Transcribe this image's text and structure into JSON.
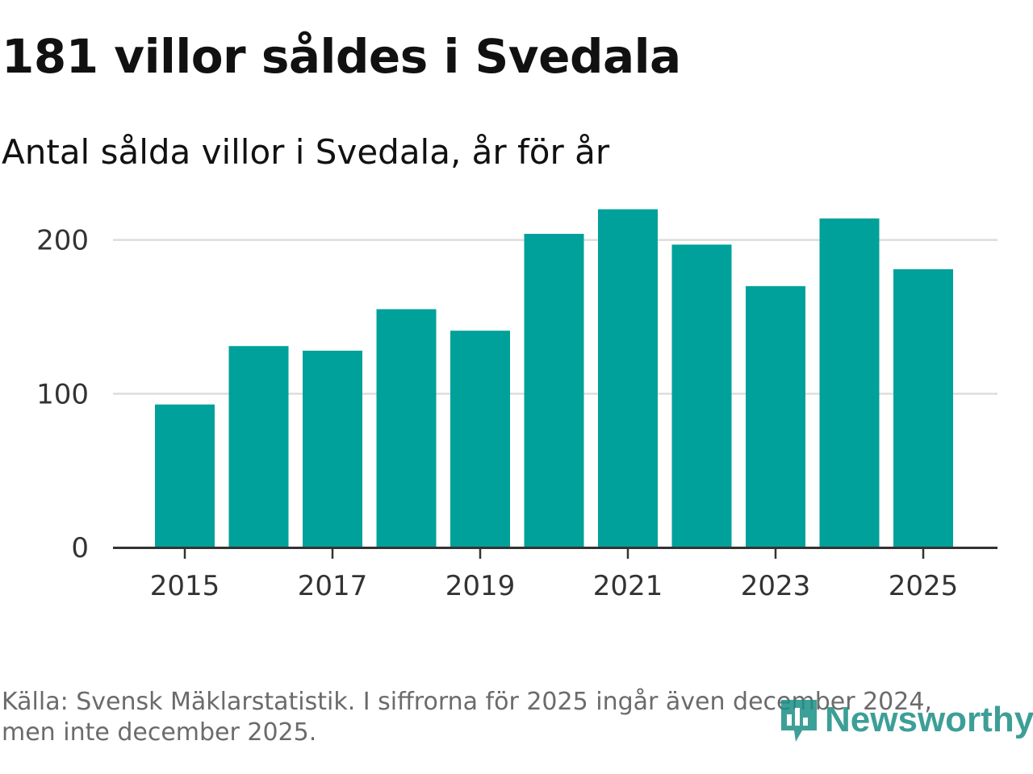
{
  "chart_data": {
    "type": "bar",
    "title": "181 villor såldes i Svedala",
    "subtitle": "Antal sålda villor i Svedala, år för år",
    "categories": [
      "2015",
      "2016",
      "2017",
      "2018",
      "2019",
      "2020",
      "2021",
      "2022",
      "2023",
      "2024",
      "2025"
    ],
    "values": [
      93,
      131,
      128,
      155,
      141,
      204,
      220,
      197,
      170,
      214,
      181
    ],
    "xticks": [
      "2015",
      "2017",
      "2019",
      "2021",
      "2023",
      "2025"
    ],
    "yticks": [
      0,
      100,
      200
    ],
    "ylim": [
      0,
      225
    ],
    "xlabel": "",
    "ylabel": "",
    "grid": true,
    "bar_color": "#00a19a",
    "grid_color": "#dddddd",
    "axis_color": "#333333"
  },
  "footer": {
    "source": "Källa: Svensk Mäklarstatistik. I siffrorna för 2025 ingår även december 2024, men inte december 2025."
  },
  "logo": {
    "text": "Newsworthy",
    "icon": "newsworthy-logo-icon",
    "color": "#1b8f86"
  }
}
